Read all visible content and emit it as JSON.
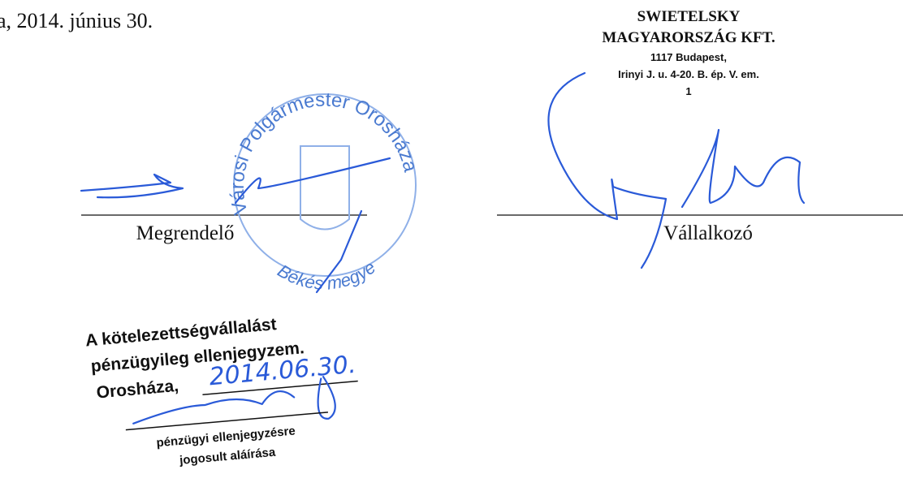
{
  "date_line": "a, 2014. június 30.",
  "company_stamp": {
    "name1": "SWIETELSKY",
    "name2": "MAGYARORSZÁG KFT.",
    "address1": "1117 Budapest,",
    "address2": "Irinyi J. u. 4-20. B. ép. V. em.",
    "number": "1"
  },
  "signatures": {
    "left": "Megrendelő",
    "right": "Vállalkozó"
  },
  "round_stamp": {
    "top": "Városi Polgármester Orosháza",
    "bottom": "Békés megye"
  },
  "countersign": {
    "line1": "A kötelezettségvállalást",
    "line2": "pénzügyileg ellenjegyzem.",
    "place": "Orosháza,",
    "date": "2014.06.30.",
    "caption1": "pénzügyi ellenjegyzésre",
    "caption2": "jogosult aláírása"
  }
}
